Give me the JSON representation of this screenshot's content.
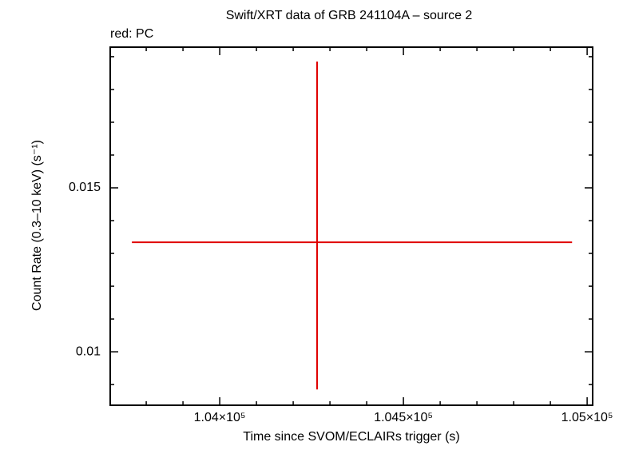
{
  "chart_data": {
    "type": "errorbar",
    "title": "Swift/XRT data of GRB 241104A – source 2",
    "subtitle": "red: PC",
    "x_label": "Time since SVOM/ECLAIRs trigger (s)",
    "y_label": "Count Rate (0.3–10 keV) (s⁻¹)",
    "xlim": [
      103702,
      105015
    ],
    "ylim": [
      0.00837,
      0.01929
    ],
    "xticks": [
      {
        "value": 104000,
        "label": "1.04×10⁵"
      },
      {
        "value": 104500,
        "label": "1.045×10⁵"
      },
      {
        "value": 105000,
        "label": "1.05×10⁵"
      }
    ],
    "yticks": [
      0.01,
      0.015
    ],
    "xminorticks": [
      103800,
      103900,
      104100,
      104200,
      104300,
      104400,
      104600,
      104700,
      104800,
      104900
    ],
    "yminorticks": [
      0.009,
      0.011,
      0.012,
      0.013,
      0.014,
      0.016,
      0.017,
      0.018,
      0.019
    ],
    "series": [
      {
        "color": "#e00000",
        "x": [
          104265
        ],
        "xerr_minus": [
          504
        ],
        "xerr_plus": [
          694
        ],
        "values": [
          0.01334
        ],
        "yerr_minus": [
          0.00449
        ],
        "yerr_plus": [
          0.00551
        ]
      }
    ]
  }
}
